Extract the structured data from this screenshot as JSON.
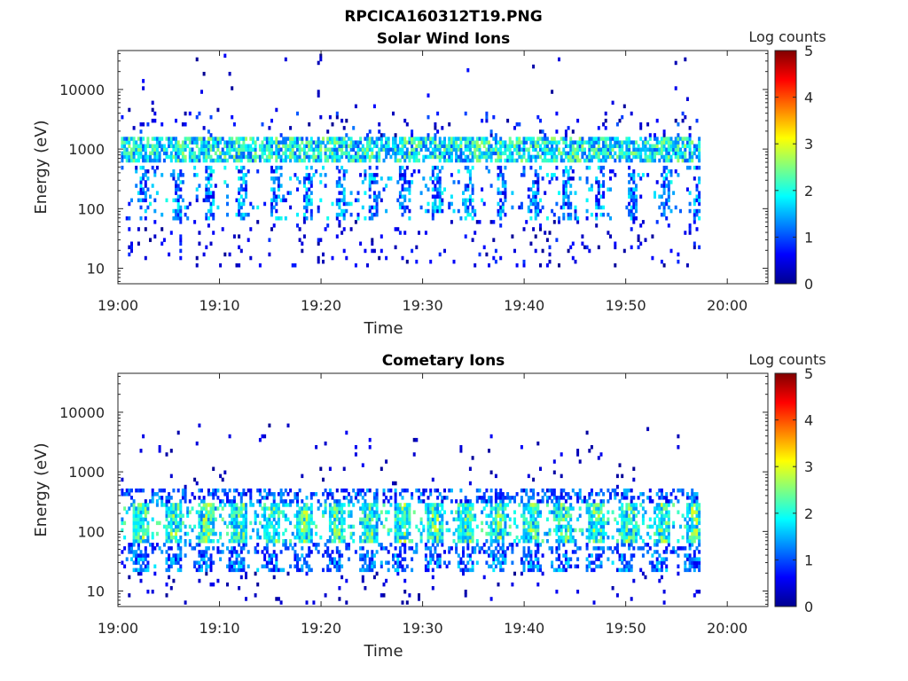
{
  "figure_title": "RPCICA160312T19.PNG",
  "colormap": [
    "#00008f",
    "#0000ff",
    "#0080ff",
    "#00ffff",
    "#80ff80",
    "#ffff00",
    "#ff8000",
    "#ff0000",
    "#800000"
  ],
  "chart_data": [
    {
      "type": "heatmap",
      "title": "Solar Wind Ions",
      "xlabel": "Time",
      "ylabel": "Energy (eV)",
      "yscale": "log",
      "ylim": [
        5.5,
        45000
      ],
      "xlim_minutes": [
        0,
        64
      ],
      "x_ticks": [
        "19:00",
        "19:10",
        "19:20",
        "19:30",
        "19:40",
        "19:50",
        "20:00"
      ],
      "y_ticks": [
        10,
        100,
        1000,
        10000
      ],
      "y_tick_labels": [
        "10",
        "100",
        "1000",
        "10000"
      ],
      "data_extent_minutes": [
        0.3,
        57.3
      ],
      "colorbar": {
        "label": "Log counts",
        "min": 0,
        "max": 5,
        "ticks": [
          "0",
          "1",
          "2",
          "3",
          "4",
          "5"
        ]
      },
      "features": {
        "main_band_energy_eV": [
          600,
          1500
        ],
        "secondary_band_energy_eV": [
          60,
          500
        ],
        "low_energy_sparse_eV": [
          10,
          60
        ],
        "scan_period_minutes": 3.2,
        "peak_log_counts": 2.7
      }
    },
    {
      "type": "heatmap",
      "title": "Cometary Ions",
      "xlabel": "Time",
      "ylabel": "Energy (eV)",
      "yscale": "log",
      "ylim": [
        5.5,
        45000
      ],
      "xlim_minutes": [
        0,
        64
      ],
      "x_ticks": [
        "19:00",
        "19:10",
        "19:20",
        "19:30",
        "19:40",
        "19:50",
        "20:00"
      ],
      "y_ticks": [
        10,
        100,
        1000,
        10000
      ],
      "y_tick_labels": [
        "10",
        "100",
        "1000",
        "10000"
      ],
      "data_extent_minutes": [
        0.3,
        57.3
      ],
      "colorbar": {
        "label": "Log counts",
        "min": 0,
        "max": 5,
        "ticks": [
          "0",
          "1",
          "2",
          "3",
          "4",
          "5"
        ]
      },
      "features": {
        "main_band_energy_eV": [
          20,
          500
        ],
        "bright_core_energy_eV": [
          60,
          300
        ],
        "low_energy_stripe_eV": [
          20,
          40
        ],
        "scan_period_minutes": 3.2,
        "peak_log_counts": 3.0
      }
    }
  ]
}
